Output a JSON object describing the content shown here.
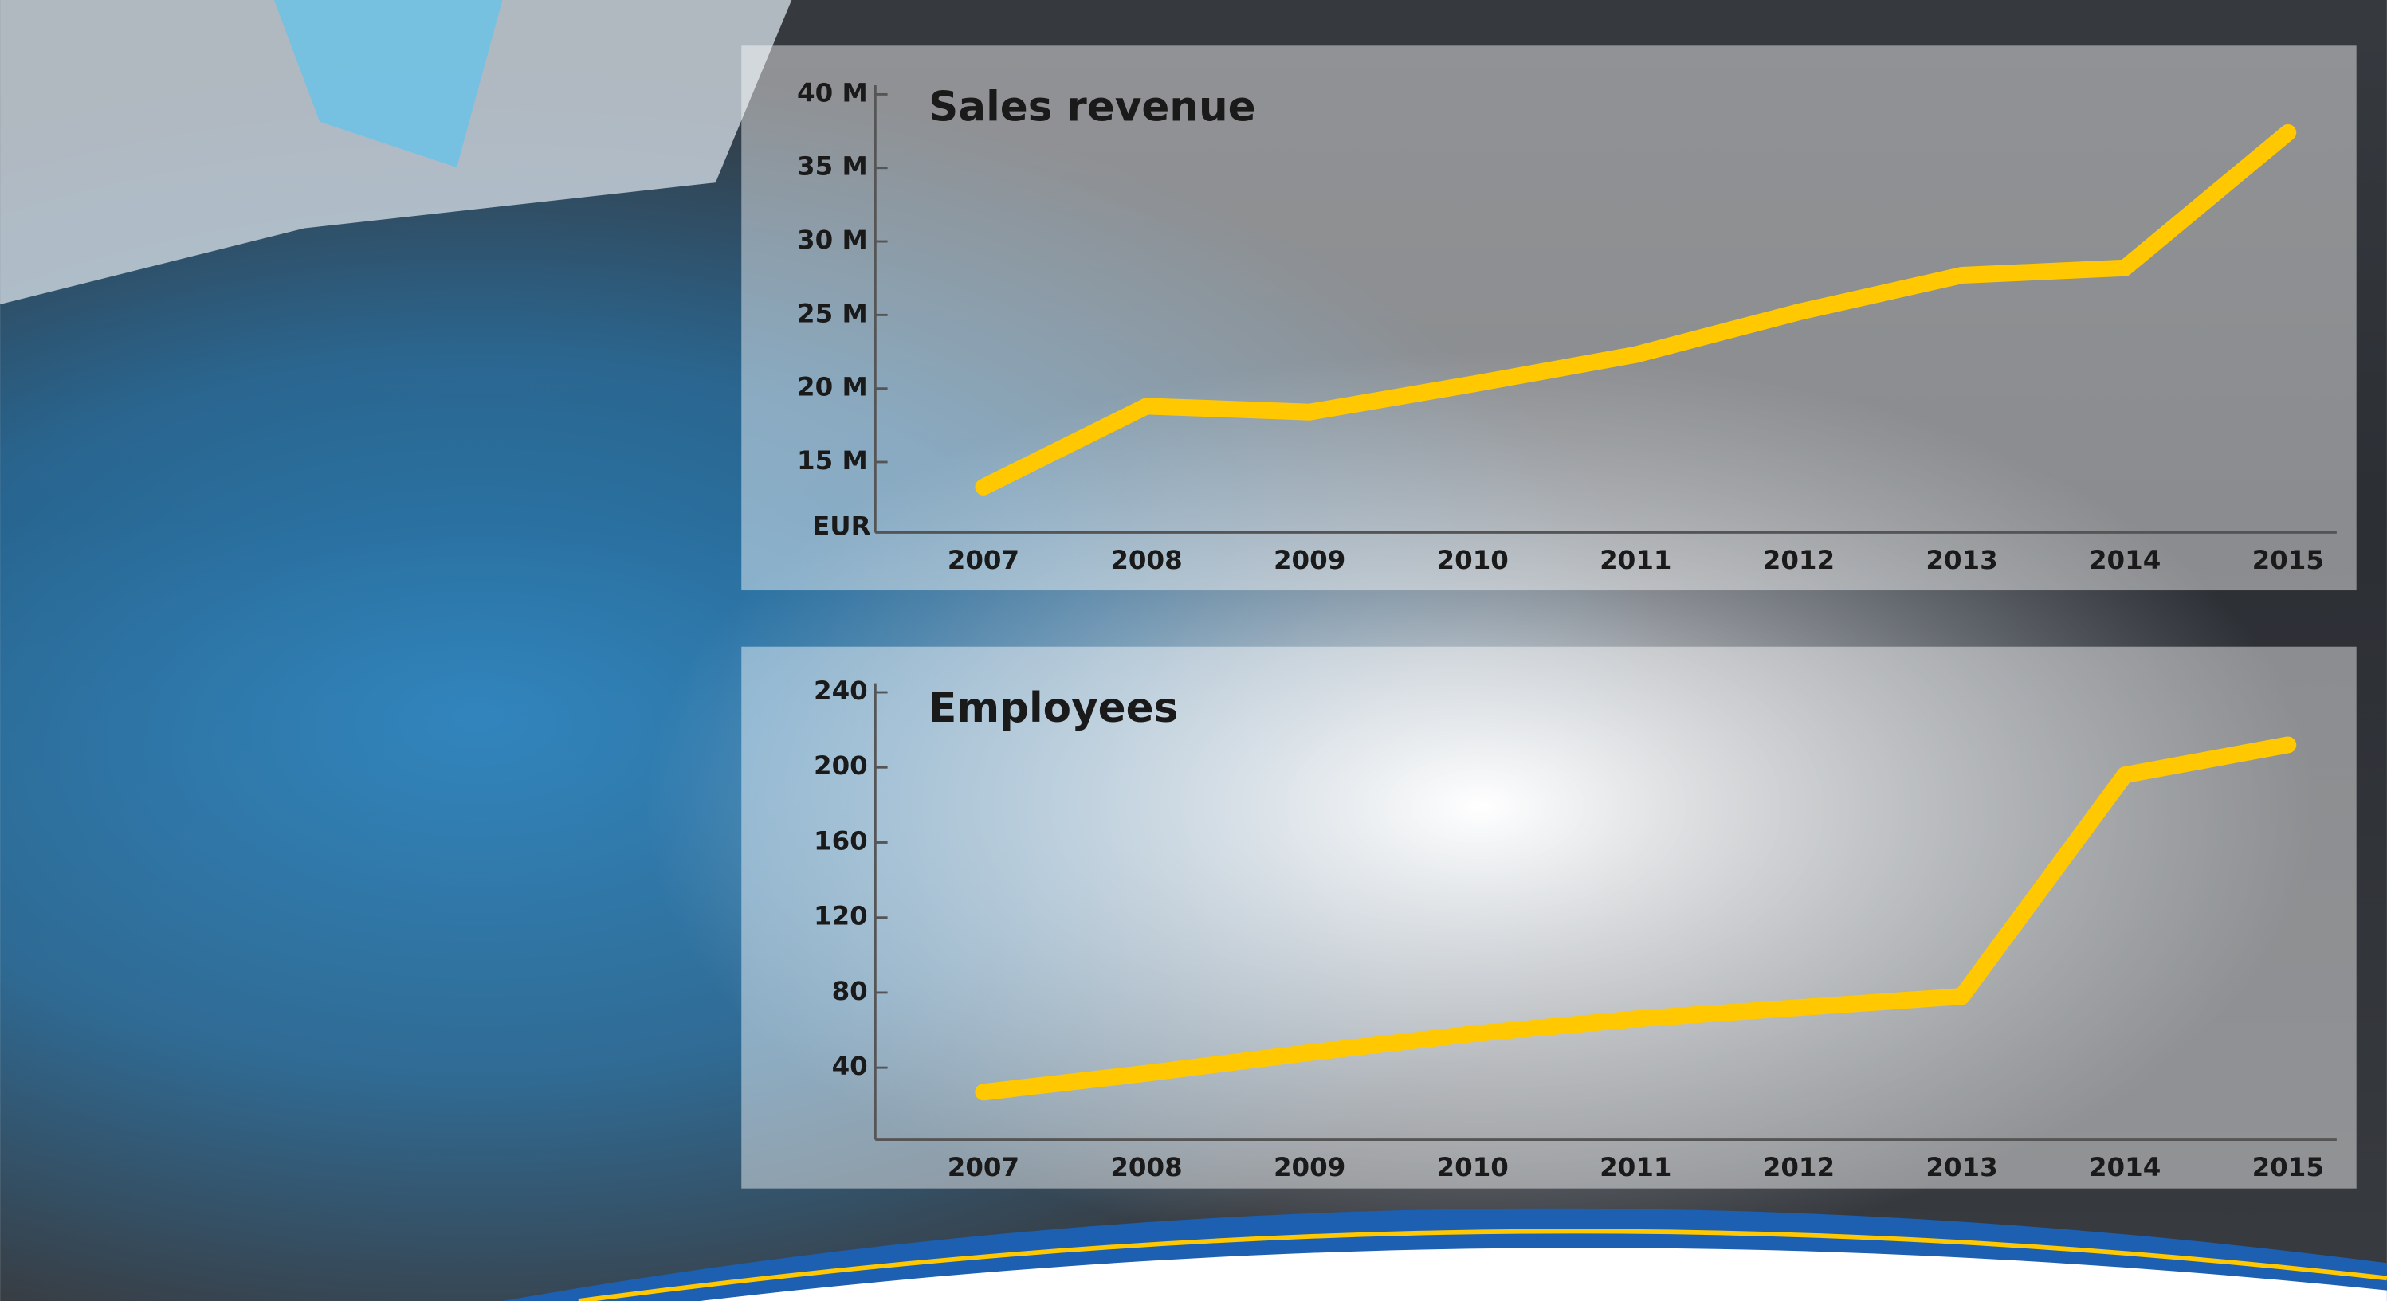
{
  "chart_data": [
    {
      "type": "line",
      "title": "Sales revenue",
      "y_label": "EUR",
      "categories": [
        "2007",
        "2008",
        "2009",
        "2010",
        "2011",
        "2012",
        "2013",
        "2014",
        "2015"
      ],
      "series": [
        {
          "name": "Sales revenue",
          "color": "#ffc800",
          "values": [
            13.3,
            18.8,
            18.4,
            20.3,
            22.3,
            25.2,
            27.7,
            28.2,
            37.4
          ]
        }
      ],
      "ylim": [
        10,
        40
      ],
      "yticks": [
        {
          "value": 15,
          "label": "15 M"
        },
        {
          "value": 20,
          "label": "20 M"
        },
        {
          "value": 25,
          "label": "25 M"
        },
        {
          "value": 30,
          "label": "30 M"
        },
        {
          "value": 35,
          "label": "35 M"
        },
        {
          "value": 40,
          "label": "40 M"
        }
      ]
    },
    {
      "type": "line",
      "title": "Employees",
      "categories": [
        "2007",
        "2008",
        "2009",
        "2010",
        "2011",
        "2012",
        "2013",
        "2014",
        "2015"
      ],
      "series": [
        {
          "name": "Employees",
          "color": "#ffc800",
          "values": [
            27,
            37,
            48,
            58,
            66,
            72,
            78,
            196,
            212
          ]
        }
      ],
      "ylim": [
        0,
        240
      ],
      "yticks": [
        40,
        80,
        120,
        160,
        200,
        240
      ]
    }
  ]
}
